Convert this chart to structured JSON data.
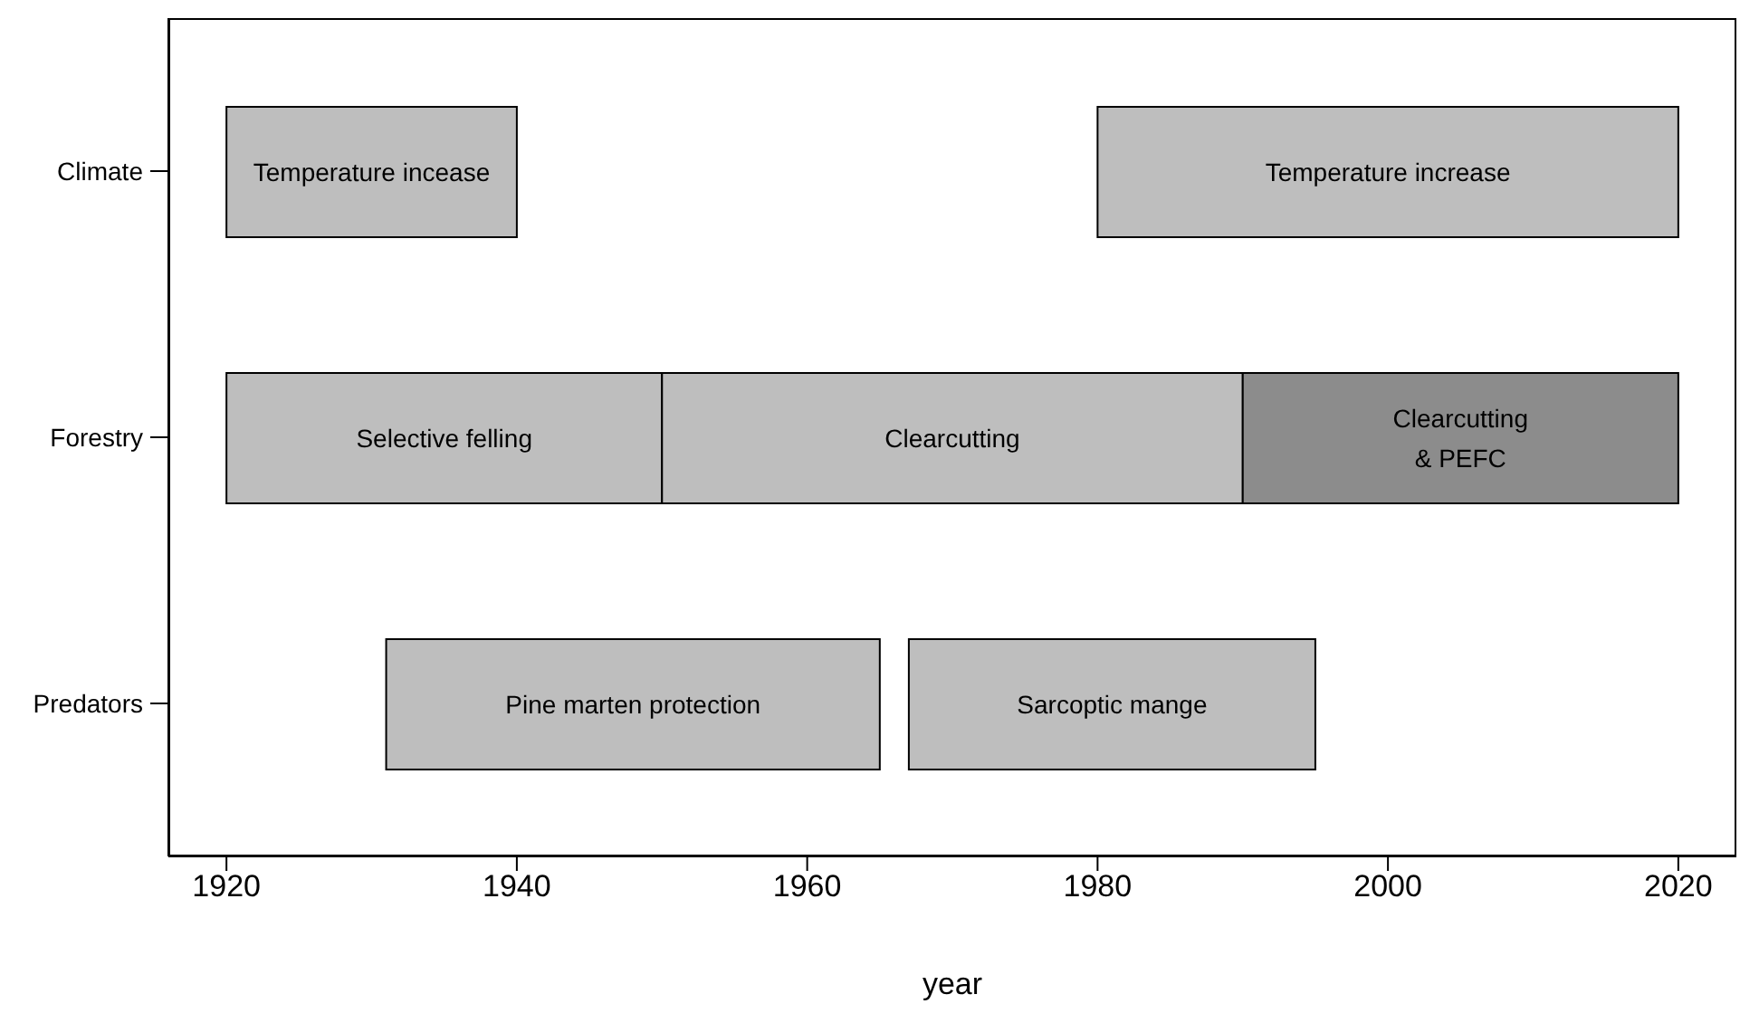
{
  "chart_data": {
    "type": "bar",
    "orientation": "horizontal",
    "xlabel": "year",
    "categories": [
      "Climate",
      "Forestry",
      "Predators"
    ],
    "series": [
      {
        "color": "#bebebe",
        "base": [
          1920,
          1920,
          1931
        ],
        "values": [
          20,
          30,
          34
        ],
        "value_labels": [
          "Temperature incease",
          "Selective felling",
          "Pine marten protection"
        ]
      },
      {
        "color": "#bebebe",
        "base": [
          1980,
          1950,
          1967
        ],
        "values": [
          40,
          40,
          28
        ],
        "value_labels": [
          "Temperature increase",
          "Clearcutting",
          "Sarcoptic mange"
        ]
      },
      {
        "color": "#8c8c8c",
        "base": [
          null,
          1990,
          null
        ],
        "values": [
          null,
          30,
          null
        ],
        "value_labels": [
          null,
          "Clearcutting\n& PEFC",
          null
        ]
      }
    ],
    "xlim": [
      1916,
      2024
    ],
    "xticks": [
      1920,
      1940,
      1960,
      1980,
      2000,
      2020
    ],
    "grid": false,
    "legend": false
  }
}
